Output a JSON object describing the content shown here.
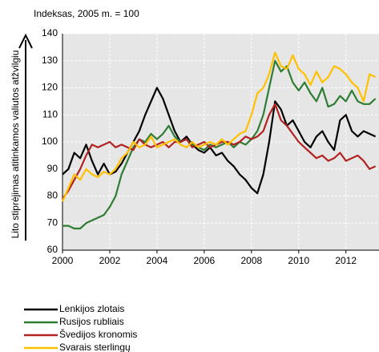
{
  "chart_data": {
    "type": "line",
    "title": "Indeksas, 2005 m. = 100",
    "y_label": "Lito stiprėjimas atitinkamos valiutos atžvilgiu",
    "x": [
      2000,
      2000.25,
      2000.5,
      2000.75,
      2001,
      2001.25,
      2001.5,
      2001.75,
      2002,
      2002.25,
      2002.5,
      2002.75,
      2003,
      2003.25,
      2003.5,
      2003.75,
      2004,
      2004.25,
      2004.5,
      2004.75,
      2005,
      2005.25,
      2005.5,
      2005.75,
      2006,
      2006.25,
      2006.5,
      2006.75,
      2007,
      2007.25,
      2007.5,
      2007.75,
      2008,
      2008.25,
      2008.5,
      2008.75,
      2009,
      2009.25,
      2009.5,
      2009.75,
      2010,
      2010.25,
      2010.5,
      2010.75,
      2011,
      2011.25,
      2011.5,
      2011.75,
      2012,
      2012.25,
      2012.5,
      2012.75,
      2013,
      2013.25
    ],
    "series": [
      {
        "name": "Lenkijos zlotais",
        "color": "#000000",
        "values": [
          88,
          90,
          96,
          94,
          99,
          93,
          88,
          92,
          88,
          89,
          92,
          96,
          100,
          104,
          110,
          115,
          120,
          116,
          110,
          104,
          100,
          102,
          99,
          97,
          96,
          98,
          95,
          96,
          93,
          91,
          88,
          86,
          83,
          81,
          88,
          100,
          115,
          112,
          106,
          108,
          104,
          100,
          98,
          102,
          104,
          100,
          97,
          108,
          110,
          104,
          102,
          104,
          103,
          102
        ]
      },
      {
        "name": "Rusijos rubliais",
        "color": "#2e7d32",
        "values": [
          69,
          69,
          68,
          68,
          70,
          71,
          72,
          73,
          76,
          80,
          88,
          93,
          98,
          101,
          100,
          103,
          101,
          103,
          106,
          102,
          100,
          101,
          99,
          98,
          97,
          99,
          98,
          99,
          100,
          98,
          100,
          99,
          101,
          104,
          110,
          120,
          130,
          126,
          128,
          122,
          119,
          122,
          118,
          115,
          120,
          113,
          114,
          117,
          115,
          119,
          115,
          114,
          114,
          116
        ]
      },
      {
        "name": "Švedijos kronomis",
        "color": "#b22222",
        "values": [
          79,
          82,
          86,
          90,
          95,
          99,
          98,
          99,
          100,
          98,
          99,
          98,
          97,
          101,
          99,
          98,
          99,
          100,
          98,
          100,
          100,
          101,
          98,
          99,
          100,
          98,
          99,
          100,
          100,
          99,
          100,
          102,
          101,
          102,
          104,
          110,
          114,
          108,
          106,
          103,
          100,
          98,
          96,
          94,
          95,
          93,
          94,
          96,
          93,
          94,
          95,
          93,
          90,
          91
        ]
      },
      {
        "name": "Svarais sterlingų",
        "color": "#ffc000",
        "values": [
          78,
          83,
          88,
          86,
          90,
          88,
          87,
          89,
          88,
          90,
          94,
          96,
          100,
          98,
          99,
          102,
          98,
          99,
          100,
          101,
          99,
          98,
          100,
          98,
          99,
          100,
          99,
          101,
          99,
          101,
          103,
          104,
          110,
          118,
          120,
          125,
          133,
          128,
          127,
          132,
          127,
          125,
          121,
          126,
          122,
          124,
          128,
          127,
          125,
          122,
          120,
          115,
          125,
          124
        ]
      }
    ],
    "xlim": [
      2000,
      2013.4
    ],
    "xticks": [
      2000,
      2002,
      2004,
      2006,
      2008,
      2010,
      2012
    ],
    "ylim": [
      60,
      140
    ],
    "yticks": [
      60,
      70,
      80,
      90,
      100,
      110,
      120,
      130,
      140
    ],
    "grid": true
  }
}
